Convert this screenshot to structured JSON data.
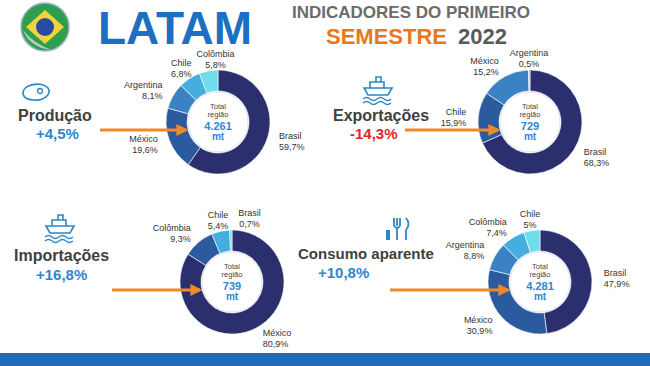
{
  "header": {
    "title": "LATAM",
    "subtitle": [
      "INDICADORES DO PRIMEIRO",
      "SEMESTRE",
      "2022"
    ]
  },
  "chart_data": [
    {
      "type": "pie",
      "title": "Produção",
      "subtitle": "+4,5%",
      "annotations": [
        "Total",
        "região",
        "4.261",
        "mt"
      ],
      "categories": [
        "Brasil",
        "México",
        "Argentina",
        "Chile",
        "Colômbia"
      ],
      "values": [
        59.7,
        19.6,
        8.1,
        6.8,
        5.8
      ],
      "value_labels": [
        "59,7%",
        "19,6%",
        "8,1%",
        "6,8%",
        "5,8%"
      ],
      "colors": [
        "#2b2f6e",
        "#2c5a9e",
        "#3b82c4",
        "#45aee0",
        "#6fdcec"
      ],
      "data_labels": true
    },
    {
      "type": "pie",
      "title": "Exportações",
      "subtitle": "-14,3%",
      "annotations": [
        "Total",
        "região",
        "729",
        "mt"
      ],
      "categories": [
        "Brasil",
        "Chile",
        "México",
        "Argentina"
      ],
      "values": [
        68.3,
        15.9,
        15.2,
        0.5
      ],
      "value_labels": [
        "68,3%",
        "15,9%",
        "15,2%",
        "0,5%"
      ],
      "colors": [
        "#2b2f6e",
        "#2c5a9e",
        "#3b82c4",
        "#6fdcec"
      ],
      "data_labels": true
    },
    {
      "type": "pie",
      "title": "Importações",
      "subtitle": "+16,8%",
      "annotations": [
        "Total",
        "região",
        "739",
        "mt"
      ],
      "categories": [
        "México",
        "Colômbia",
        "Chile",
        "Brasil"
      ],
      "values": [
        80.9,
        9.3,
        5.4,
        0.7
      ],
      "value_labels": [
        "80,9%",
        "9,3%",
        "5,4%",
        "0,7%"
      ],
      "colors": [
        "#2b2f6e",
        "#2c5a9e",
        "#45aee0",
        "#6fdcec"
      ],
      "data_labels": true
    },
    {
      "type": "pie",
      "title": "Consumo aparente",
      "subtitle": "+10,8%",
      "annotations": [
        "Total",
        "região",
        "4.281",
        "mt"
      ],
      "categories": [
        "Brasil",
        "México",
        "Argentina",
        "Colômbia",
        "Chile"
      ],
      "values": [
        47.9,
        30.9,
        8.8,
        7.4,
        5
      ],
      "value_labels": [
        "47,9%",
        "30,9%",
        "8,8%",
        "7,4%",
        "5%"
      ],
      "colors": [
        "#2b2f6e",
        "#2c5a9e",
        "#3b82c4",
        "#45aee0",
        "#6fdcec"
      ],
      "data_labels": true
    }
  ]
}
